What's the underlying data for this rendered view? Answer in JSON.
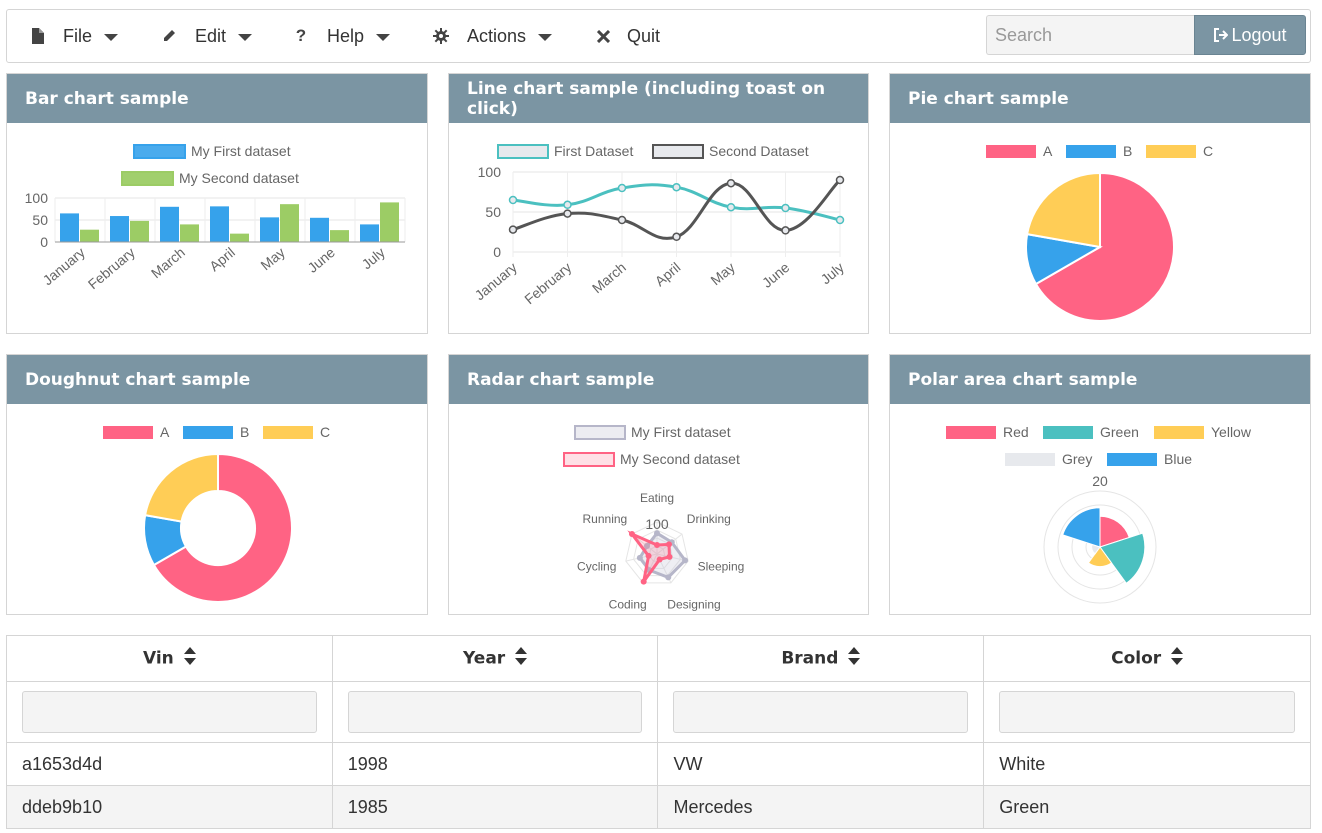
{
  "menu": {
    "items": [
      {
        "label": "File",
        "icon": "file-icon",
        "caret": true
      },
      {
        "label": "Edit",
        "icon": "pencil-icon",
        "caret": true
      },
      {
        "label": "Help",
        "icon": "question-icon",
        "caret": true
      },
      {
        "label": "Actions",
        "icon": "gear-icon",
        "caret": true
      },
      {
        "label": "Quit",
        "icon": "close-icon",
        "caret": false
      }
    ],
    "search_placeholder": "Search",
    "logout_label": "Logout"
  },
  "colors": {
    "header": "#7b95a3",
    "red": "#ff6384",
    "blue": "#36a2eb",
    "yellow": "#ffcd56",
    "green": "#4bc0c0",
    "grey": "#e7e9ed",
    "bar_green": "#9ccc65"
  },
  "panels": {
    "bar": {
      "title": "Bar chart sample"
    },
    "line": {
      "title": "Line chart sample (including toast on click)"
    },
    "pie": {
      "title": "Pie chart sample"
    },
    "doughnut": {
      "title": "Doughnut chart sample"
    },
    "radar": {
      "title": "Radar chart sample"
    },
    "polar": {
      "title": "Polar area chart sample"
    }
  },
  "chart_data": [
    {
      "type": "bar",
      "categories": [
        "January",
        "February",
        "March",
        "April",
        "May",
        "June",
        "July"
      ],
      "series": [
        {
          "name": "My First dataset",
          "values": [
            65,
            59,
            80,
            81,
            56,
            55,
            40
          ]
        },
        {
          "name": "My Second dataset",
          "values": [
            28,
            48,
            40,
            19,
            86,
            27,
            90
          ]
        }
      ],
      "yticks": [
        "100",
        "50",
        "0"
      ],
      "ylim": [
        0,
        100
      ]
    },
    {
      "type": "line",
      "categories": [
        "January",
        "February",
        "March",
        "April",
        "May",
        "June",
        "July"
      ],
      "series": [
        {
          "name": "First Dataset",
          "values": [
            65,
            59,
            80,
            81,
            56,
            55,
            40
          ]
        },
        {
          "name": "Second Dataset",
          "values": [
            28,
            48,
            40,
            19,
            86,
            27,
            90
          ]
        }
      ],
      "yticks": [
        "100",
        "50",
        "0"
      ],
      "ylim": [
        0,
        100
      ]
    },
    {
      "type": "pie",
      "labels": [
        "A",
        "B",
        "C"
      ],
      "values": [
        300,
        50,
        100
      ]
    },
    {
      "type": "pie",
      "variant": "doughnut",
      "labels": [
        "A",
        "B",
        "C"
      ],
      "values": [
        300,
        50,
        100
      ]
    },
    {
      "type": "radar",
      "axes": [
        "Eating",
        "Drinking",
        "Sleeping",
        "Designing",
        "Coding",
        "Cycling",
        "Running"
      ],
      "series": [
        {
          "name": "My First dataset",
          "values": [
            65,
            59,
            90,
            81,
            56,
            55,
            40
          ]
        },
        {
          "name": "My Second dataset",
          "values": [
            28,
            48,
            40,
            19,
            96,
            27,
            100
          ]
        }
      ],
      "tick_label": "100"
    },
    {
      "type": "polar",
      "labels": [
        "Red",
        "Green",
        "Yellow",
        "Grey",
        "Blue"
      ],
      "values": [
        11,
        16,
        7,
        3,
        14
      ],
      "tick_label": "20",
      "rmax": 20
    }
  ],
  "table": {
    "columns": [
      "Vin",
      "Year",
      "Brand",
      "Color"
    ],
    "rows": [
      [
        "a1653d4d",
        "1998",
        "VW",
        "White"
      ],
      [
        "ddeb9b10",
        "1985",
        "Mercedes",
        "Green"
      ]
    ]
  }
}
